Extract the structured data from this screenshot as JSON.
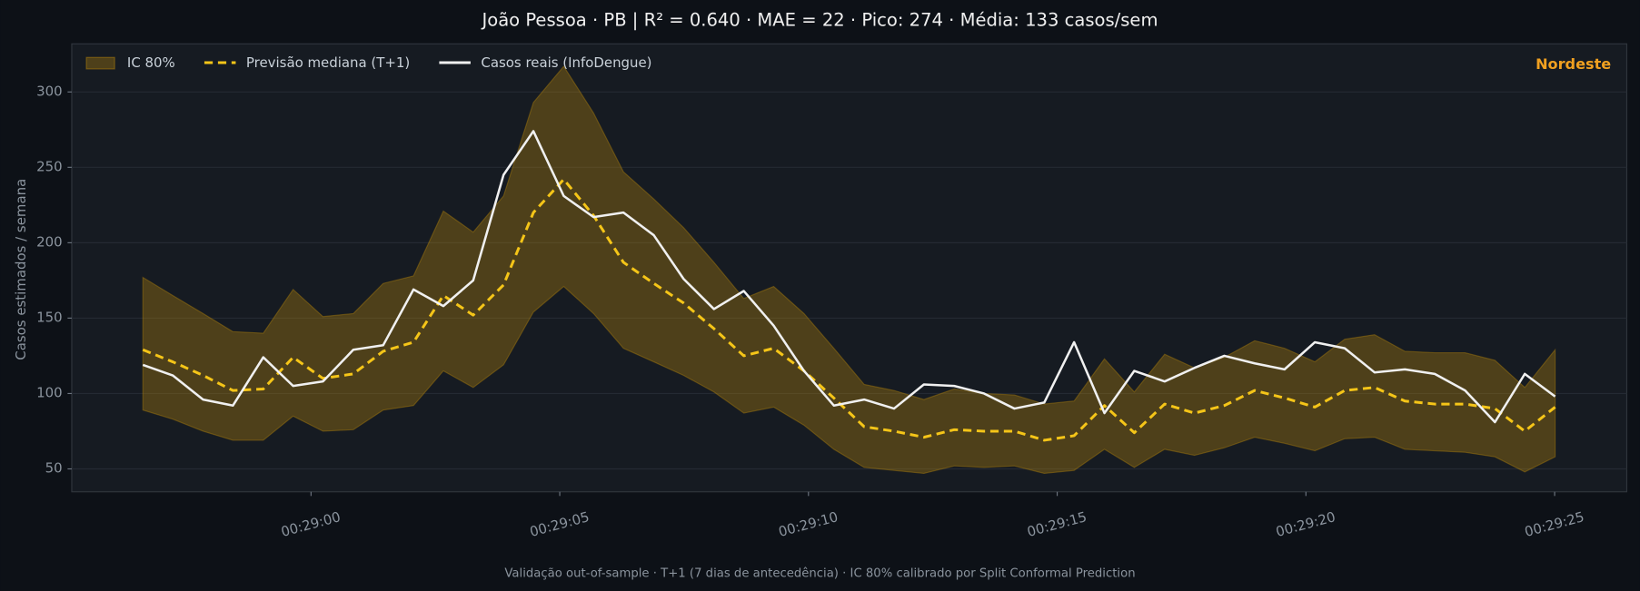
{
  "chart_data": {
    "type": "line",
    "title": "João Pessoa · PB   |   R² = 0.640  ·  MAE = 22  ·  Pico: 274  ·  Média: 133 casos/sem",
    "ylabel": "Casos estimados / semana",
    "annotation": "Nordeste",
    "footnote": "Validação out-of-sample · T+1 (7 dias de antecedência) · IC 80% calibrado por Split Conformal Prediction",
    "x": [
      1736.62,
      1737.22,
      1737.83,
      1738.43,
      1739.04,
      1739.64,
      1740.24,
      1740.85,
      1741.45,
      1742.06,
      1742.66,
      1743.26,
      1743.87,
      1744.47,
      1745.08,
      1745.68,
      1746.28,
      1746.89,
      1747.49,
      1748.1,
      1748.7,
      1749.3,
      1749.91,
      1750.51,
      1751.12,
      1751.72,
      1752.32,
      1752.93,
      1753.53,
      1754.14,
      1754.74,
      1755.34,
      1755.95,
      1756.55,
      1757.16,
      1757.76,
      1758.36,
      1758.97,
      1759.57,
      1760.18,
      1760.78,
      1761.38,
      1761.99,
      1762.59,
      1763.2,
      1763.8,
      1764.4,
      1765.01
    ],
    "xlim": [
      1735.19,
      1766.45
    ],
    "xticks": [
      {
        "value": 1740,
        "label": "00:29:00"
      },
      {
        "value": 1745,
        "label": "00:29:05"
      },
      {
        "value": 1750,
        "label": "00:29:10"
      },
      {
        "value": 1755,
        "label": "00:29:15"
      },
      {
        "value": 1760,
        "label": "00:29:20"
      },
      {
        "value": 1765,
        "label": "00:29:25"
      }
    ],
    "ylim": [
      34.8,
      331.9
    ],
    "yticks": [
      50,
      100,
      150,
      200,
      250,
      300
    ],
    "grid": true,
    "band": {
      "name": "IC 80%",
      "color": "#b8860b",
      "upper": [
        177,
        165,
        153,
        141,
        140,
        169,
        151,
        153,
        173,
        178,
        221,
        207,
        231,
        293,
        317,
        286,
        247,
        229,
        210,
        187,
        163,
        171,
        153,
        130,
        106,
        102,
        96,
        103,
        100,
        99,
        93,
        95,
        123,
        101,
        126,
        117,
        124,
        135,
        130,
        121,
        136,
        139,
        128,
        127,
        127,
        122,
        104,
        129
      ],
      "lower": [
        89,
        83,
        75,
        69,
        69,
        85,
        75,
        76,
        89,
        92,
        115,
        104,
        119,
        154,
        171,
        153,
        130,
        121,
        112,
        101,
        87,
        91,
        79,
        63,
        51,
        49,
        47,
        52,
        51,
        52,
        47,
        49,
        63,
        51,
        63,
        59,
        64,
        71,
        67,
        62,
        70,
        71,
        63,
        62,
        61,
        58,
        48,
        58
      ]
    },
    "series": [
      {
        "name": "Previsão mediana (T+1)",
        "color": "#f5c518",
        "dashed": true,
        "values": [
          129,
          121,
          112,
          102,
          103,
          124,
          110,
          113,
          128,
          134,
          165,
          152,
          172,
          220,
          242,
          218,
          187,
          173,
          160,
          143,
          125,
          130,
          115,
          97,
          78,
          75,
          71,
          76,
          75,
          75,
          69,
          72,
          92,
          74,
          93,
          87,
          92,
          102,
          97,
          91,
          102,
          104,
          95,
          93,
          93,
          90,
          75,
          91
        ]
      },
      {
        "name": "Casos reais (InfoDengue)",
        "color": "#f0f0f0",
        "dashed": false,
        "values": [
          119,
          112,
          96,
          92,
          124,
          105,
          108,
          129,
          132,
          169,
          158,
          175,
          245,
          274,
          231,
          217,
          220,
          205,
          176,
          156,
          168,
          145,
          115,
          92,
          96,
          90,
          106,
          105,
          100,
          90,
          94,
          134,
          87,
          115,
          108,
          117,
          125,
          120,
          116,
          134,
          130,
          114,
          116,
          113,
          102,
          81,
          113,
          98
        ]
      }
    ]
  }
}
